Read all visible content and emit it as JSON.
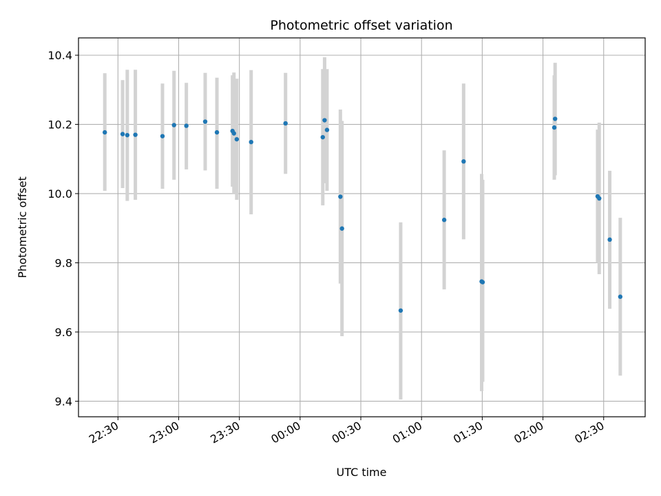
{
  "chart_data": {
    "type": "scatter",
    "title": "Photometric offset variation",
    "xlabel": "UTC time",
    "ylabel": "Photometric offset",
    "x_tick_labels": [
      "22:30",
      "23:00",
      "23:30",
      "00:00",
      "00:30",
      "01:00",
      "01:30",
      "02:00",
      "02:30"
    ],
    "x_tick_minutes": [
      0,
      30,
      60,
      90,
      120,
      150,
      180,
      210,
      240
    ],
    "y_ticks": [
      9.4,
      9.6,
      9.8,
      10.0,
      10.2,
      10.4
    ],
    "y_tick_labels": [
      "9.4",
      "9.6",
      "9.8",
      "10.0",
      "10.2",
      "10.4"
    ],
    "xlim": [
      -19.5,
      260.5
    ],
    "ylim": [
      9.355,
      10.45
    ],
    "grid": true,
    "point_color": "#1f77b4",
    "errorbar_color": "#d3d3d3",
    "points": [
      {
        "t": -6.5,
        "y": 10.177,
        "lo": 10.008,
        "hi": 10.348
      },
      {
        "t": 2.3,
        "y": 10.172,
        "lo": 10.016,
        "hi": 10.328
      },
      {
        "t": 4.6,
        "y": 10.169,
        "lo": 9.979,
        "hi": 10.358
      },
      {
        "t": 8.6,
        "y": 10.17,
        "lo": 9.982,
        "hi": 10.358
      },
      {
        "t": 22.0,
        "y": 10.166,
        "lo": 10.014,
        "hi": 10.318
      },
      {
        "t": 27.7,
        "y": 10.198,
        "lo": 10.04,
        "hi": 10.355
      },
      {
        "t": 33.8,
        "y": 10.196,
        "lo": 10.07,
        "hi": 10.32
      },
      {
        "t": 43.1,
        "y": 10.208,
        "lo": 10.067,
        "hi": 10.349
      },
      {
        "t": 48.9,
        "y": 10.177,
        "lo": 10.014,
        "hi": 10.335
      },
      {
        "t": 56.6,
        "y": 10.181,
        "lo": 10.02,
        "hi": 10.342
      },
      {
        "t": 57.3,
        "y": 10.174,
        "lo": 9.998,
        "hi": 10.35
      },
      {
        "t": 58.7,
        "y": 10.157,
        "lo": 9.982,
        "hi": 10.332
      },
      {
        "t": 65.8,
        "y": 10.149,
        "lo": 9.94,
        "hi": 10.357
      },
      {
        "t": 82.8,
        "y": 10.203,
        "lo": 10.057,
        "hi": 10.349
      },
      {
        "t": 101.2,
        "y": 10.163,
        "lo": 9.966,
        "hi": 10.36
      },
      {
        "t": 102.1,
        "y": 10.212,
        "lo": 10.03,
        "hi": 10.394
      },
      {
        "t": 103.3,
        "y": 10.184,
        "lo": 10.008,
        "hi": 10.36
      },
      {
        "t": 109.9,
        "y": 9.991,
        "lo": 9.74,
        "hi": 10.243
      },
      {
        "t": 110.7,
        "y": 9.899,
        "lo": 9.588,
        "hi": 10.21
      },
      {
        "t": 139.7,
        "y": 9.662,
        "lo": 9.405,
        "hi": 9.917
      },
      {
        "t": 161.2,
        "y": 9.924,
        "lo": 9.723,
        "hi": 10.125
      },
      {
        "t": 170.8,
        "y": 10.093,
        "lo": 9.868,
        "hi": 10.318
      },
      {
        "t": 179.7,
        "y": 9.746,
        "lo": 9.429,
        "hi": 10.057
      },
      {
        "t": 180.2,
        "y": 9.744,
        "lo": 9.456,
        "hi": 10.04
      },
      {
        "t": 215.6,
        "y": 10.191,
        "lo": 10.04,
        "hi": 10.342
      },
      {
        "t": 216.0,
        "y": 10.216,
        "lo": 10.053,
        "hi": 10.378
      },
      {
        "t": 237.0,
        "y": 9.992,
        "lo": 9.8,
        "hi": 10.185
      },
      {
        "t": 237.8,
        "y": 9.986,
        "lo": 9.767,
        "hi": 10.205
      },
      {
        "t": 243.0,
        "y": 9.867,
        "lo": 9.667,
        "hi": 10.066
      },
      {
        "t": 248.2,
        "y": 9.702,
        "lo": 9.474,
        "hi": 9.93
      }
    ]
  }
}
